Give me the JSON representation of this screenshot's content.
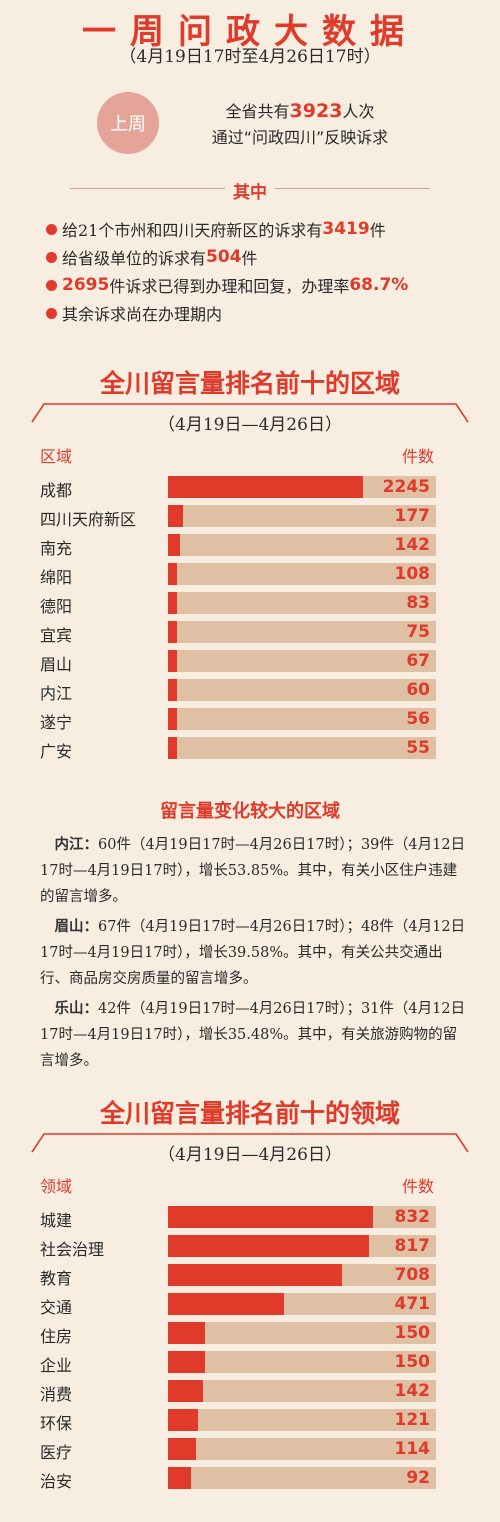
{
  "header": {
    "title": "一周问政大数据",
    "period": "（4月19日17时至4月26日17时）",
    "badge": "上周",
    "line1_pre": "全省共有",
    "line1_num": "3923",
    "line1_post": "人次",
    "line2": "通过“问政四川”反映诉求"
  },
  "details": {
    "heading": "其中",
    "b1_pre": "给21个市州和四川天府新区的诉求有",
    "b1_num": "3419",
    "b1_post": "件",
    "b2_pre": "给省级单位的诉求有",
    "b2_num": "504",
    "b2_post": "件",
    "b3_num": "2695",
    "b3_mid": "件诉求已得到办理和回复，办理率",
    "b3_rate": "68.7%",
    "b4": "其余诉求尚在办理期内"
  },
  "region_section": {
    "title": "全川留言量排名前十的区域",
    "date": "（4月19日—4月26日）",
    "col_label": "区域",
    "col_count": "件数"
  },
  "field_section": {
    "title": "全川留言量排名前十的领域",
    "date": "（4月19日—4月26日）",
    "col_label": "领域",
    "col_count": "件数"
  },
  "changes": {
    "title": "留言量变化较大的区域",
    "items": [
      {
        "name": "内江：",
        "text": "60件（4月19日17时—4月26日17时）；39件（4月12日17时—4月19日17时），增长53.85%。其中，有关小区住户违建的留言增多。"
      },
      {
        "name": "眉山：",
        "text": "67件（4月19日17时—4月26日17时）；48件（4月12日17时—4月19日17时），增长39.58%。其中，有关公共交通出行、商品房交房质量的留言增多。"
      },
      {
        "name": "乐山：",
        "text": "42件（4月19日17时—4月26日17时）；31件（4月12日17时—4月19日17时），增长35.48%。其中，有关旅游购物的留言增多。"
      }
    ]
  },
  "colors": {
    "accent": "#e03a2a",
    "track": "#dfc0a4",
    "background": "#f7ede1",
    "badge": "#e4a497"
  },
  "chart_data": [
    {
      "type": "bar",
      "orientation": "horizontal",
      "title": "全川留言量排名前十的区域",
      "categories": [
        "成都",
        "四川天府新区",
        "南充",
        "绵阳",
        "德阳",
        "宜宾",
        "眉山",
        "内江",
        "遂宁",
        "广安"
      ],
      "values": [
        2245,
        177,
        142,
        108,
        83,
        75,
        67,
        60,
        56,
        55
      ],
      "xlabel": "件数",
      "ylabel": "区域"
    },
    {
      "type": "bar",
      "orientation": "horizontal",
      "title": "全川留言量排名前十的领域",
      "categories": [
        "城建",
        "社会治理",
        "教育",
        "交通",
        "住房",
        "企业",
        "消费",
        "环保",
        "医疗",
        "治安"
      ],
      "values": [
        832,
        817,
        708,
        471,
        150,
        150,
        142,
        121,
        114,
        92
      ],
      "xlabel": "件数",
      "ylabel": "领域"
    }
  ]
}
